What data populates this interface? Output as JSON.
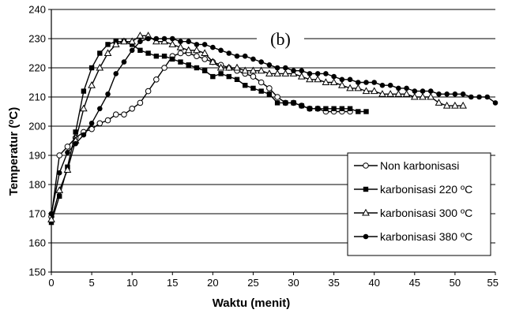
{
  "chart_data": {
    "type": "line",
    "title": "",
    "panel_label": "(b)",
    "xlabel": "Waktu (menit)",
    "ylabel_main": "Temperatur (",
    "ylabel_sup": "o",
    "ylabel_end": "C)",
    "xlim": [
      0,
      55
    ],
    "ylim": [
      150,
      240
    ],
    "xticks": [
      0,
      5,
      10,
      15,
      20,
      25,
      30,
      35,
      40,
      45,
      50,
      55
    ],
    "yticks": [
      150,
      160,
      170,
      180,
      190,
      200,
      210,
      220,
      230,
      240
    ],
    "legend_position": "bottom-right",
    "series": [
      {
        "name": "Non karbonisasi",
        "marker": "open-circle",
        "x": [
          0,
          1,
          2,
          3,
          4,
          5,
          6,
          7,
          8,
          9,
          10,
          11,
          12,
          13,
          14,
          15,
          16,
          17,
          18,
          19,
          20,
          21,
          22,
          23,
          24,
          25,
          26,
          27,
          28,
          29,
          30,
          31,
          32,
          33,
          34,
          35,
          36,
          37
        ],
        "y": [
          169,
          190,
          193,
          196,
          198,
          199,
          201,
          202,
          204,
          204,
          206,
          208,
          212,
          216,
          220,
          224,
          225,
          225,
          224,
          223,
          222,
          221,
          220,
          219,
          218,
          217,
          215,
          213,
          210,
          208,
          208,
          207,
          206,
          206,
          205,
          205,
          205,
          205
        ]
      },
      {
        "name": "karbonisasi 220 ºC",
        "marker": "filled-square",
        "x": [
          0,
          1,
          2,
          3,
          4,
          5,
          6,
          7,
          8,
          9,
          10,
          11,
          12,
          13,
          14,
          15,
          16,
          17,
          18,
          19,
          20,
          21,
          22,
          23,
          24,
          25,
          26,
          27,
          28,
          29,
          30,
          31,
          32,
          33,
          34,
          35,
          36,
          37,
          38,
          39
        ],
        "y": [
          167,
          176,
          186,
          198,
          212,
          220,
          225,
          228,
          229,
          229,
          228,
          226,
          225,
          224,
          224,
          223,
          222,
          221,
          220,
          219,
          217,
          218,
          217,
          216,
          214,
          213,
          212,
          211,
          208,
          208,
          208,
          207,
          206,
          206,
          206,
          206,
          206,
          206,
          205,
          205
        ]
      },
      {
        "name": "karbonisasi 300 ºC",
        "marker": "open-triangle",
        "x": [
          0,
          1,
          2,
          3,
          4,
          5,
          6,
          7,
          8,
          9,
          10,
          11,
          12,
          13,
          14,
          15,
          16,
          17,
          18,
          19,
          20,
          21,
          22,
          23,
          24,
          25,
          26,
          27,
          28,
          29,
          30,
          31,
          32,
          33,
          34,
          35,
          36,
          37,
          38,
          39,
          40,
          41,
          42,
          43,
          44,
          45,
          46,
          47,
          48,
          49,
          50,
          51
        ],
        "y": [
          168,
          178,
          185,
          195,
          206,
          214,
          220,
          225,
          228,
          229,
          229,
          231,
          231,
          229,
          229,
          228,
          227,
          226,
          226,
          225,
          222,
          220,
          220,
          220,
          219,
          219,
          219,
          218,
          218,
          218,
          218,
          217,
          216,
          216,
          215,
          215,
          214,
          213,
          213,
          212,
          212,
          211,
          211,
          211,
          211,
          210,
          210,
          210,
          208,
          207,
          207,
          207
        ]
      },
      {
        "name": "karbonisasi 380 ºC",
        "marker": "filled-circle",
        "x": [
          0,
          1,
          2,
          3,
          4,
          5,
          6,
          7,
          8,
          9,
          10,
          11,
          12,
          13,
          14,
          15,
          16,
          17,
          18,
          19,
          20,
          21,
          22,
          23,
          24,
          25,
          26,
          27,
          28,
          29,
          30,
          31,
          32,
          33,
          34,
          35,
          36,
          37,
          38,
          39,
          40,
          41,
          42,
          43,
          44,
          45,
          46,
          47,
          48,
          49,
          50,
          51,
          52,
          53,
          54,
          55
        ],
        "y": [
          170,
          184,
          191,
          194,
          197,
          201,
          206,
          211,
          218,
          222,
          226,
          229,
          230,
          230,
          230,
          230,
          229,
          229,
          228,
          228,
          227,
          226,
          225,
          224,
          224,
          223,
          222,
          221,
          220,
          220,
          219,
          219,
          218,
          218,
          218,
          217,
          216,
          216,
          215,
          215,
          215,
          214,
          214,
          213,
          213,
          212,
          212,
          212,
          211,
          211,
          211,
          211,
          210,
          210,
          210,
          208
        ]
      }
    ]
  }
}
